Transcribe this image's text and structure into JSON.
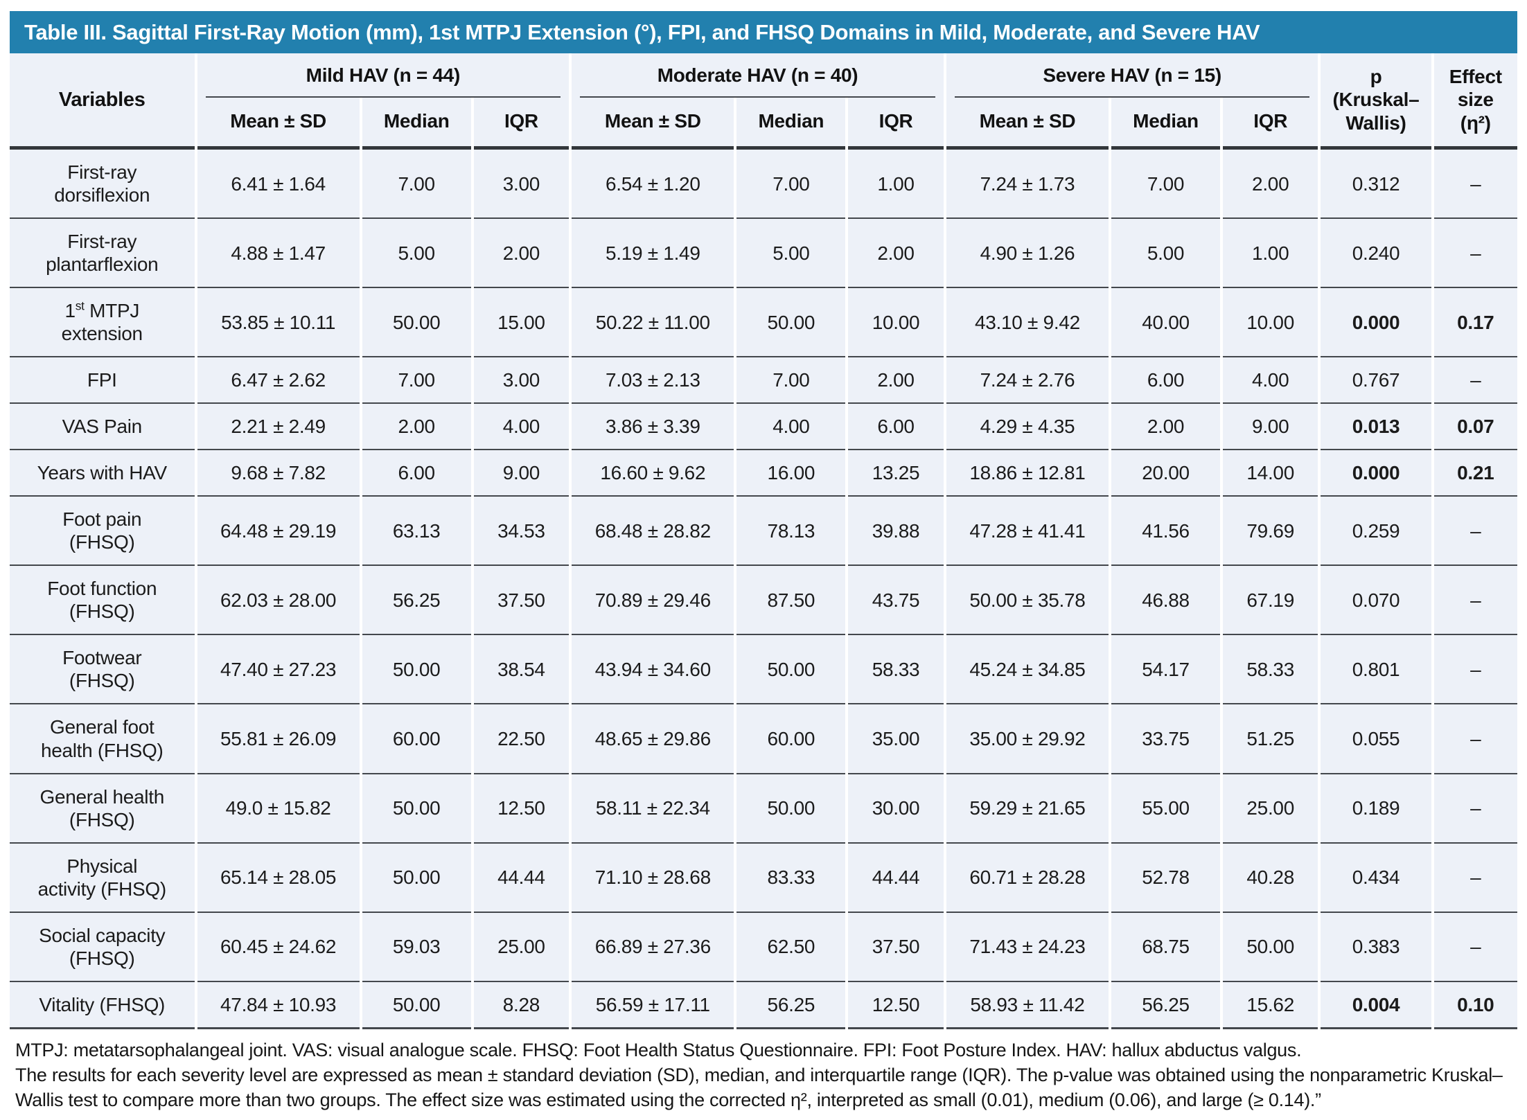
{
  "title": "Table III. Sagittal First-Ray Motion (mm), 1st MTPJ Extension (°), FPI, and FHSQ Domains in Mild, Moderate, and Severe HAV",
  "colors": {
    "title_bar_blue": "#2280ae",
    "cell_background": "#edf1f8",
    "rule_line": "#43474c"
  },
  "header": {
    "variables_label": "Variables",
    "groups": [
      {
        "label": "Mild HAV (n = 44)",
        "subcols": [
          "Mean ± SD",
          "Median",
          "IQR"
        ]
      },
      {
        "label": "Moderate HAV (n = 40)",
        "subcols": [
          "Mean ± SD",
          "Median",
          "IQR"
        ]
      },
      {
        "label": "Severe HAV (n = 15)",
        "subcols": [
          "Mean ± SD",
          "Median",
          "IQR"
        ]
      }
    ],
    "p_label": "p\n(Kruskal–\nWallis)",
    "effect_label": "Effect\nsize\n(η²)"
  },
  "rows": [
    {
      "label": "First-ray\ndorsiflexion",
      "values": [
        "6.41 ± 1.64",
        "7.00",
        "3.00",
        "6.54 ± 1.20",
        "7.00",
        "1.00",
        "7.24 ± 1.73",
        "7.00",
        "2.00"
      ],
      "p": "0.312",
      "effect": "–",
      "significant": false
    },
    {
      "label": "First-ray\nplantarflexion",
      "values": [
        "4.88 ± 1.47",
        "5.00",
        "2.00",
        "5.19 ± 1.49",
        "5.00",
        "2.00",
        "4.90 ± 1.26",
        "5.00",
        "1.00"
      ],
      "p": "0.240",
      "effect": "–",
      "significant": false
    },
    {
      "label": "1st MTPJ\nextension",
      "label_parts": [
        {
          "t": "1",
          "sup": false
        },
        {
          "t": "st",
          "sup": true
        },
        {
          "t": " MTPJ\nextension",
          "sup": false
        }
      ],
      "values": [
        "53.85 ± 10.11",
        "50.00",
        "15.00",
        "50.22 ± 11.00",
        "50.00",
        "10.00",
        "43.10 ± 9.42",
        "40.00",
        "10.00"
      ],
      "p": "0.000",
      "effect": "0.17",
      "significant": true
    },
    {
      "label": "FPI",
      "values": [
        "6.47 ± 2.62",
        "7.00",
        "3.00",
        "7.03 ± 2.13",
        "7.00",
        "2.00",
        "7.24 ± 2.76",
        "6.00",
        "4.00"
      ],
      "p": "0.767",
      "effect": "–",
      "significant": false
    },
    {
      "label": "VAS Pain",
      "values": [
        "2.21 ± 2.49",
        "2.00",
        "4.00",
        "3.86 ± 3.39",
        "4.00",
        "6.00",
        "4.29 ± 4.35",
        "2.00",
        "9.00"
      ],
      "p": "0.013",
      "effect": "0.07",
      "significant": true
    },
    {
      "label": "Years with HAV",
      "values": [
        "9.68 ± 7.82",
        "6.00",
        "9.00",
        "16.60 ± 9.62",
        "16.00",
        "13.25",
        "18.86 ± 12.81",
        "20.00",
        "14.00"
      ],
      "p": "0.000",
      "effect": "0.21",
      "significant": true
    },
    {
      "label": "Foot pain\n(FHSQ)",
      "values": [
        "64.48 ± 29.19",
        "63.13",
        "34.53",
        "68.48 ± 28.82",
        "78.13",
        "39.88",
        "47.28 ± 41.41",
        "41.56",
        "79.69"
      ],
      "p": "0.259",
      "effect": "–",
      "significant": false
    },
    {
      "label": "Foot function\n(FHSQ)",
      "values": [
        "62.03 ± 28.00",
        "56.25",
        "37.50",
        "70.89 ± 29.46",
        "87.50",
        "43.75",
        "50.00 ± 35.78",
        "46.88",
        "67.19"
      ],
      "p": "0.070",
      "effect": "–",
      "significant": false
    },
    {
      "label": "Footwear\n(FHSQ)",
      "values": [
        "47.40 ± 27.23",
        "50.00",
        "38.54",
        "43.94 ± 34.60",
        "50.00",
        "58.33",
        "45.24 ± 34.85",
        "54.17",
        "58.33"
      ],
      "p": "0.801",
      "effect": "–",
      "significant": false
    },
    {
      "label": "General foot\nhealth (FHSQ)",
      "values": [
        "55.81 ± 26.09",
        "60.00",
        "22.50",
        "48.65 ± 29.86",
        "60.00",
        "35.00",
        "35.00 ± 29.92",
        "33.75",
        "51.25"
      ],
      "p": "0.055",
      "effect": "–",
      "significant": false
    },
    {
      "label": "General health\n(FHSQ)",
      "values": [
        "49.0 ± 15.82",
        "50.00",
        "12.50",
        "58.11 ± 22.34",
        "50.00",
        "30.00",
        "59.29 ± 21.65",
        "55.00",
        "25.00"
      ],
      "p": "0.189",
      "effect": "–",
      "significant": false
    },
    {
      "label": "Physical\nactivity (FHSQ)",
      "values": [
        "65.14 ± 28.05",
        "50.00",
        "44.44",
        "71.10 ± 28.68",
        "83.33",
        "44.44",
        "60.71 ± 28.28",
        "52.78",
        "40.28"
      ],
      "p": "0.434",
      "effect": "–",
      "significant": false
    },
    {
      "label": "Social capacity\n(FHSQ)",
      "values": [
        "60.45 ± 24.62",
        "59.03",
        "25.00",
        "66.89 ± 27.36",
        "62.50",
        "37.50",
        "71.43 ± 24.23",
        "68.75",
        "50.00"
      ],
      "p": "0.383",
      "effect": "–",
      "significant": false
    },
    {
      "label": "Vitality (FHSQ)",
      "values": [
        "47.84 ± 10.93",
        "50.00",
        "8.28",
        "56.59 ± 17.11",
        "56.25",
        "12.50",
        "58.93 ± 11.42",
        "56.25",
        "15.62"
      ],
      "p": "0.004",
      "effect": "0.10",
      "significant": true
    }
  ],
  "footnotes": [
    "MTPJ: metatarsophalangeal joint. VAS: visual analogue scale. FHSQ: Foot Health Status Questionnaire. FPI: Foot Posture Index. HAV: hallux abductus valgus.",
    "The results for each severity level are expressed as mean ± standard deviation (SD), median, and interquartile range (IQR). The p-value was obtained using the nonparametric Kruskal–Wallis test to compare more than two groups. The effect size was estimated using the corrected η², interpreted as small (0.01), medium (0.06), and large (≥ 0.14).”"
  ]
}
